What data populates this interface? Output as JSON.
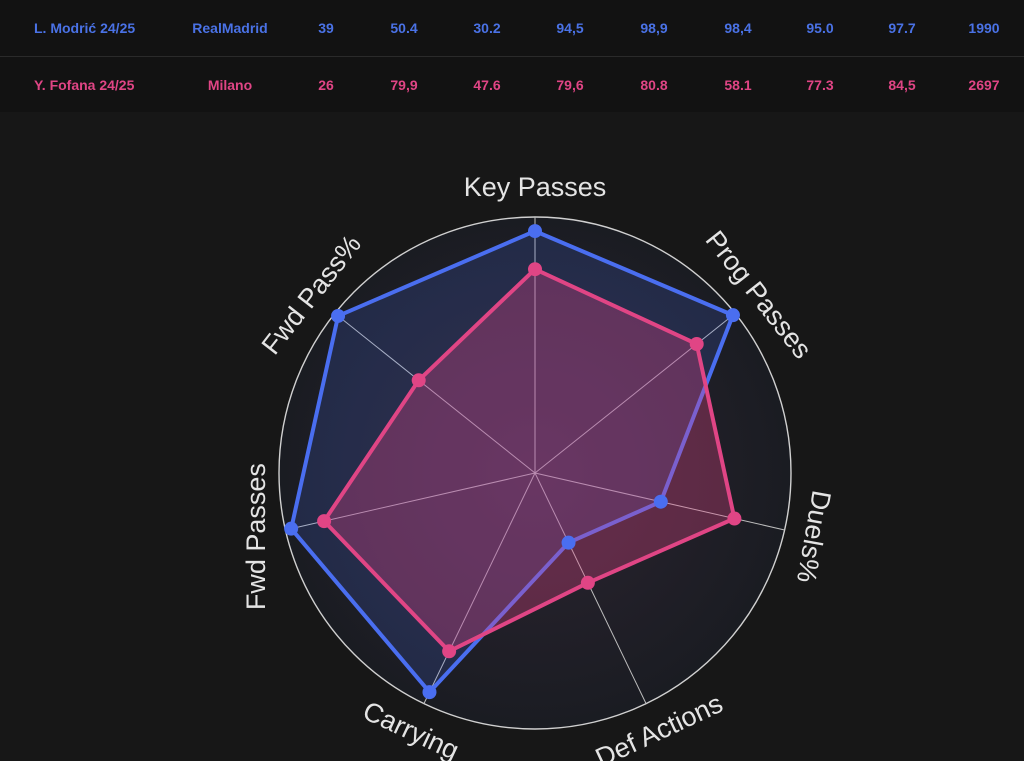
{
  "table": {
    "rows": [
      {
        "player": "L. Modrić 24/25",
        "team": "Real Madrid",
        "team_lines": [
          "Real",
          "Madrid"
        ],
        "stats": [
          "39",
          "50.4",
          "30.2",
          "94,5",
          "98,9",
          "98,4",
          "95.0",
          "97.7",
          "1990"
        ],
        "color": "#4a72e6"
      },
      {
        "player": "Y. Fofana 24/25",
        "team": "Milano",
        "team_lines": [
          "Milano"
        ],
        "stats": [
          "26",
          "79,9",
          "47.6",
          "79,6",
          "80.8",
          "58.1",
          "77.3",
          "84,5",
          "2697"
        ],
        "color": "#e04585"
      }
    ]
  },
  "chart_data": {
    "type": "radar",
    "axes": [
      "Key Passes",
      "Prog Passes",
      "Duels%",
      "Def Actions",
      "Carrying",
      "Fwd Passes",
      "Fwd Pass%"
    ],
    "range": [
      0,
      100
    ],
    "series": [
      {
        "name": "L. Modrić 24/25",
        "color": "#4a6ef0",
        "values": [
          94.5,
          98.9,
          50.4,
          30.2,
          95.0,
          97.7,
          98.4
        ]
      },
      {
        "name": "Y. Fofana 24/25",
        "color": "#e04585",
        "values": [
          79.6,
          80.8,
          79.9,
          47.6,
          77.3,
          84.5,
          58.1
        ]
      }
    ]
  }
}
